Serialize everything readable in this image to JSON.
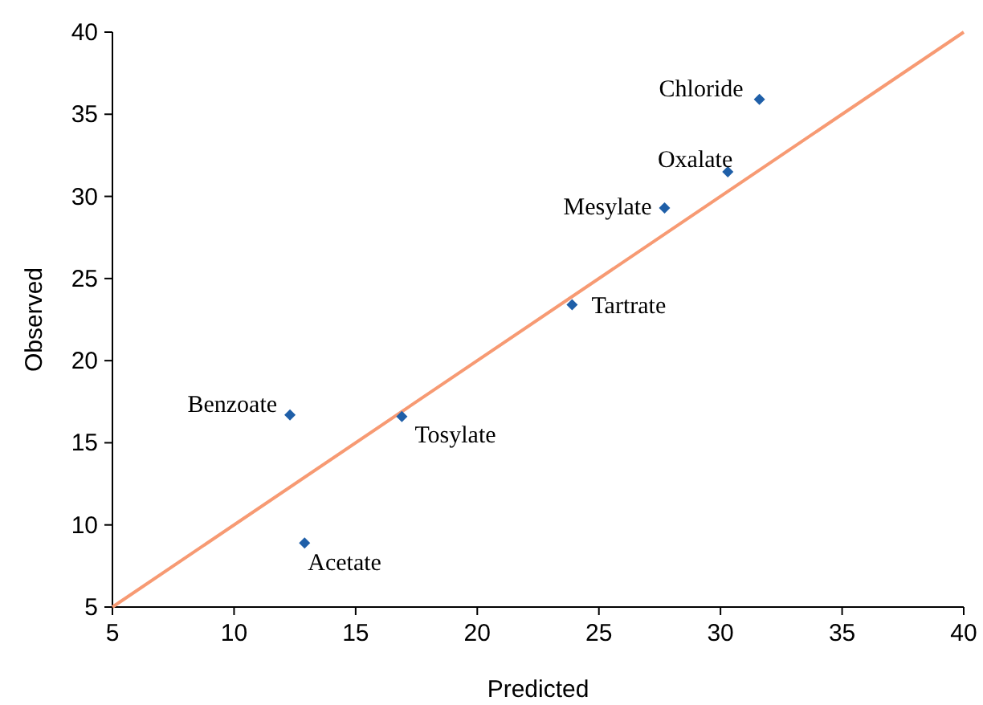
{
  "chart_data": {
    "type": "scatter",
    "xlabel": "Predicted",
    "ylabel": "Observed",
    "xlim": [
      5,
      40
    ],
    "ylim": [
      5,
      40
    ],
    "xticks": [
      5,
      10,
      15,
      20,
      25,
      30,
      35,
      40
    ],
    "yticks": [
      5,
      10,
      15,
      20,
      25,
      30,
      35,
      40
    ],
    "series": [
      {
        "type": "line",
        "color": "#f79a73",
        "x": [
          5,
          40
        ],
        "values": [
          5,
          40
        ],
        "marker": "none",
        "line_style": "solid"
      },
      {
        "color": "#1f5fa8",
        "marker": "diamond",
        "x": [
          31.6,
          30.3,
          27.7,
          23.9,
          16.9,
          12.3,
          12.9
        ],
        "values": [
          35.9,
          31.5,
          29.3,
          23.4,
          16.6,
          16.7,
          8.9
        ]
      }
    ],
    "annotations": [
      {
        "text": "Chloride",
        "x": 31.6,
        "y": 35.9
      },
      {
        "text": "Oxalate",
        "x": 30.3,
        "y": 31.5
      },
      {
        "text": "Mesylate",
        "x": 27.7,
        "y": 29.3
      },
      {
        "text": "Tartrate",
        "x": 23.9,
        "y": 23.4
      },
      {
        "text": "Tosylate",
        "x": 16.9,
        "y": 16.6
      },
      {
        "text": "Benzoate",
        "x": 12.3,
        "y": 16.7
      },
      {
        "text": "Acetate",
        "x": 12.9,
        "y": 8.9
      }
    ]
  }
}
